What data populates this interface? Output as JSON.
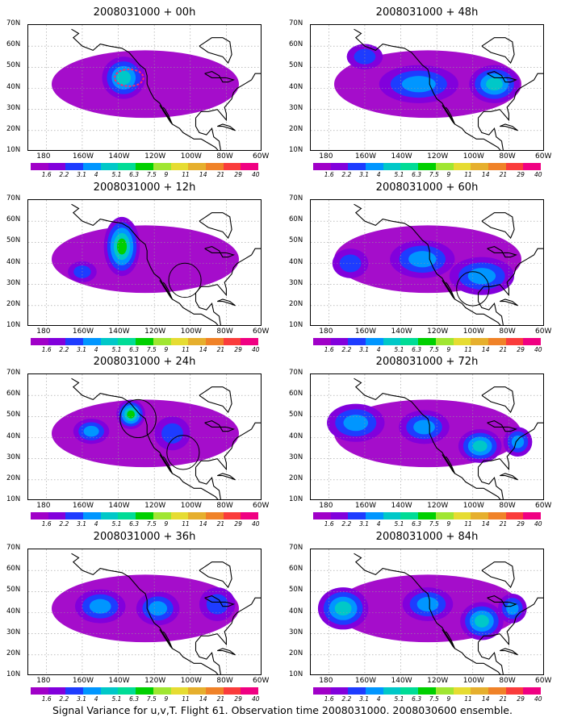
{
  "panels": [
    {
      "title": "2008031000 + 00h",
      "blobs": [
        {
          "lon": -137,
          "lat": 45,
          "rx": 12,
          "ry": 10,
          "levels": 4
        }
      ],
      "circles": [],
      "dashed_ellipse": {
        "lon": -134,
        "lat": 45,
        "rx": 8,
        "ry": 4
      }
    },
    {
      "title": "2008031000 + 48h",
      "blobs": [
        {
          "lon": -130,
          "lat": 42,
          "rx": 22,
          "ry": 9,
          "levels": 3
        },
        {
          "lon": -88,
          "lat": 42,
          "rx": 14,
          "ry": 9,
          "levels": 4
        },
        {
          "lon": -160,
          "lat": 55,
          "rx": 10,
          "ry": 6,
          "levels": 2
        }
      ],
      "circles": [],
      "dashed_ellipse": null
    },
    {
      "title": "2008031000 + 12h",
      "blobs": [
        {
          "lon": -138,
          "lat": 48,
          "rx": 10,
          "ry": 14,
          "levels": 5
        },
        {
          "lon": -160,
          "lat": 36,
          "rx": 8,
          "ry": 5,
          "levels": 2
        }
      ],
      "circles": [
        {
          "lon": -103,
          "lat": 32,
          "r": 9
        }
      ],
      "dashed_ellipse": null
    },
    {
      "title": "2008031000 + 60h",
      "blobs": [
        {
          "lon": -128,
          "lat": 42,
          "rx": 18,
          "ry": 9,
          "levels": 3
        },
        {
          "lon": -95,
          "lat": 34,
          "rx": 18,
          "ry": 9,
          "levels": 3
        },
        {
          "lon": -168,
          "lat": 40,
          "rx": 10,
          "ry": 7,
          "levels": 2
        }
      ],
      "circles": [
        {
          "lon": -100,
          "lat": 28,
          "r": 9
        }
      ],
      "dashed_ellipse": null
    },
    {
      "title": "2008031000 + 24h",
      "blobs": [
        {
          "lon": -133,
          "lat": 51,
          "rx": 8,
          "ry": 7,
          "levels": 5
        },
        {
          "lon": -155,
          "lat": 43,
          "rx": 10,
          "ry": 6,
          "levels": 3
        },
        {
          "lon": -110,
          "lat": 42,
          "rx": 10,
          "ry": 8,
          "levels": 2
        }
      ],
      "circles": [
        {
          "lon": -129,
          "lat": 49,
          "r": 10
        },
        {
          "lon": -104,
          "lat": 33,
          "r": 9
        }
      ],
      "dashed_ellipse": null
    },
    {
      "title": "2008031000 + 72h",
      "blobs": [
        {
          "lon": -165,
          "lat": 47,
          "rx": 16,
          "ry": 9,
          "levels": 3
        },
        {
          "lon": -127,
          "lat": 45,
          "rx": 14,
          "ry": 8,
          "levels": 3
        },
        {
          "lon": -96,
          "lat": 36,
          "rx": 12,
          "ry": 8,
          "levels": 4
        },
        {
          "lon": -75,
          "lat": 38,
          "rx": 8,
          "ry": 7,
          "levels": 3
        }
      ],
      "circles": [],
      "dashed_ellipse": null
    },
    {
      "title": "2008031000 + 36h",
      "blobs": [
        {
          "lon": -150,
          "lat": 43,
          "rx": 14,
          "ry": 8,
          "levels": 3
        },
        {
          "lon": -118,
          "lat": 42,
          "rx": 12,
          "ry": 8,
          "levels": 3
        },
        {
          "lon": -85,
          "lat": 44,
          "rx": 10,
          "ry": 8,
          "levels": 2
        }
      ],
      "circles": [],
      "dashed_ellipse": null
    },
    {
      "title": "2008031000 + 84h",
      "blobs": [
        {
          "lon": -172,
          "lat": 42,
          "rx": 14,
          "ry": 10,
          "levels": 4
        },
        {
          "lon": -125,
          "lat": 44,
          "rx": 14,
          "ry": 8,
          "levels": 3
        },
        {
          "lon": -95,
          "lat": 36,
          "rx": 12,
          "ry": 9,
          "levels": 4
        },
        {
          "lon": -78,
          "lat": 42,
          "rx": 8,
          "ry": 7,
          "levels": 3
        }
      ],
      "circles": [],
      "dashed_ellipse": null
    }
  ],
  "lat_labels": [
    "70N",
    "60N",
    "50N",
    "40N",
    "30N",
    "20N",
    "10N"
  ],
  "lon_labels": [
    "180",
    "160W",
    "140W",
    "120W",
    "100W",
    "80W",
    "60W"
  ],
  "colorbar": {
    "colors": [
      "#a000c8",
      "#8200dc",
      "#1e3cff",
      "#0096ff",
      "#00c8c8",
      "#00dc96",
      "#00d000",
      "#a0e632",
      "#e6dc32",
      "#e6af2d",
      "#f08228",
      "#fa3c3c",
      "#f00082"
    ],
    "labels": [
      "1.6",
      "2.2",
      "3.1",
      "4",
      "5.1",
      "6.3",
      "7.5",
      "9",
      "11",
      "14",
      "21",
      "29",
      "40"
    ]
  },
  "caption": "Signal Variance for u,v,T. Flight 61. Observation time 2008031000. 2008030600 ensemble."
}
